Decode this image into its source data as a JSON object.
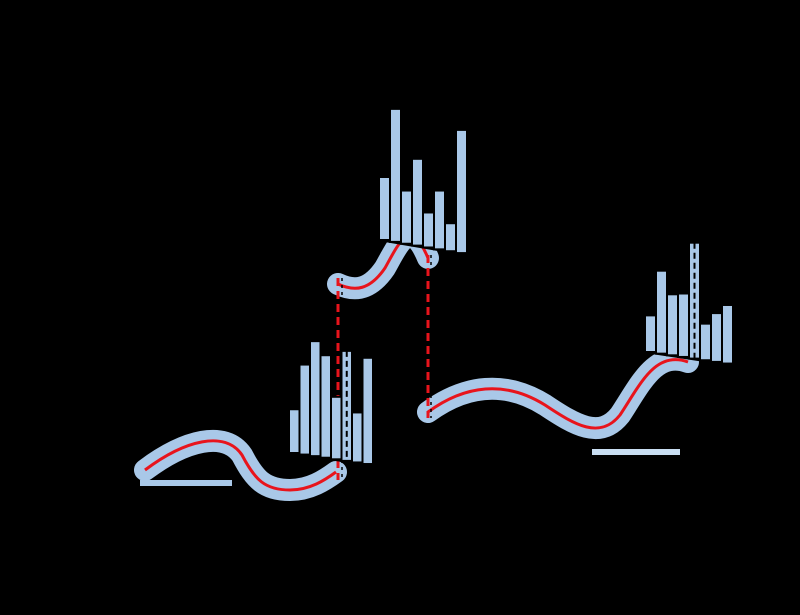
{
  "colors": {
    "background": "#000000",
    "band": "#a9c8e8",
    "curve": "#e8141c",
    "bar_fill": "#a9c8e8",
    "bar_stroke": "#000000",
    "dashed_link": "#e8141c",
    "ledge": "#c9def2"
  },
  "segments": [
    {
      "name": "segment-1"
    },
    {
      "name": "segment-2"
    },
    {
      "name": "segment-3"
    }
  ],
  "histograms": [
    {
      "name": "histogram-1",
      "bars": [
        0.35,
        0.72,
        0.92,
        0.82,
        0.5,
        0.88,
        0.4,
        0.85
      ],
      "dashed_index": 5
    },
    {
      "name": "histogram-2",
      "bars": [
        0.45,
        0.95,
        0.38,
        0.62,
        0.25,
        0.42,
        0.2,
        0.88
      ],
      "dashed_index": null
    },
    {
      "name": "histogram-3",
      "bars": [
        0.3,
        0.68,
        0.5,
        0.52,
        0.95,
        0.3,
        0.4,
        0.48
      ],
      "dashed_index": 4
    }
  ],
  "links": [
    {
      "name": "jump-link-1"
    },
    {
      "name": "jump-link-2"
    }
  ]
}
